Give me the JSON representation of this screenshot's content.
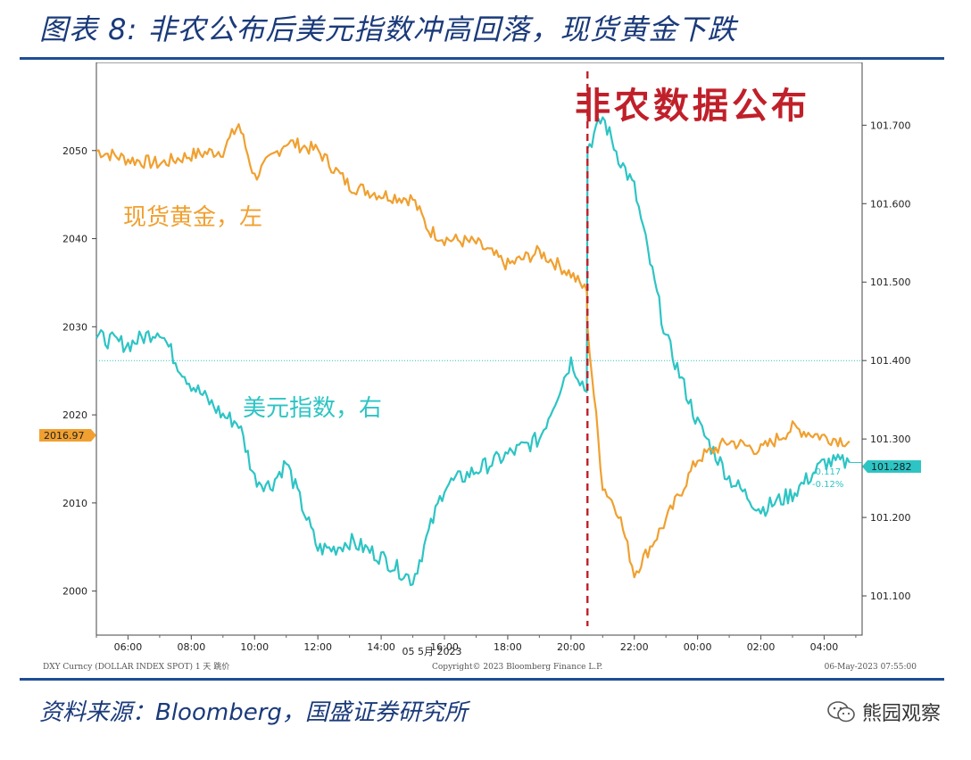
{
  "header": {
    "title": "图表 8:  非农公布后美元指数冲高回落，现货黄金下跌"
  },
  "footer": {
    "source": "资料来源：Bloomberg，国盛证券研究所",
    "watermark": "熊园观察"
  },
  "colors": {
    "gold": "#f0a030",
    "dxy": "#2ec4c4",
    "event": "#c0202a",
    "accent": "#1f4e96"
  },
  "chart_data": {
    "type": "line",
    "annotation_event": "非农数据公布",
    "series_labels": {
      "gold": "现货黄金，左",
      "dxy": "美元指数，右"
    },
    "x_ticks": [
      "06:00",
      "08:00",
      "10:00",
      "12:00",
      "14:00",
      "16:00",
      "18:00",
      "20:00",
      "22:00",
      "00:00",
      "02:00",
      "04:00"
    ],
    "x_date_label": "05 5月 2023",
    "y_left_ticks": [
      "2000",
      "2010",
      "2020",
      "2030",
      "2040",
      "2050"
    ],
    "y_right_ticks": [
      "101.100",
      "101.200",
      "101.300",
      "101.400",
      "101.500",
      "101.600",
      "101.700"
    ],
    "ylim_left": [
      1995,
      2060
    ],
    "ylim_right": [
      101.05,
      101.78
    ],
    "last_gold_label": "2016.97",
    "last_dxy_label": "101.282",
    "dxy_change": "-0.117",
    "dxy_change_pct": "-0.12%",
    "reference_level_right": 101.4,
    "footer_left": "DXY Curncy (DOLLAR INDEX SPOT) 1 天  跳价",
    "footer_mid": "Copyright© 2023 Bloomberg Finance L.P.",
    "footer_right": "06-May-2023 07:55:00",
    "x": [
      5.0,
      6.0,
      7.0,
      7.5,
      8.0,
      9.0,
      9.5,
      10.0,
      10.5,
      11.0,
      12.0,
      12.5,
      13.0,
      14.0,
      15.0,
      15.5,
      16.0,
      17.0,
      18.0,
      19.0,
      20.0,
      20.5,
      20.52,
      21.0,
      21.5,
      22.0,
      23.0,
      24.0,
      25.0,
      26.0,
      27.0,
      28.0,
      28.8
    ],
    "gold": [
      2050,
      2049.0,
      2048.5,
      2049.0,
      2049.5,
      2050.0,
      2053,
      2047,
      2049,
      2051.0,
      2050.0,
      2048,
      2046,
      2045.0,
      2044.5,
      2041,
      2040.0,
      2039.5,
      2037,
      2038.5,
      2036,
      2034.0,
      2030.0,
      2012,
      2009,
      2002,
      2008.0,
      2015.0,
      2017,
      2016.0,
      2018.5,
      2017.5,
      2017.0
    ],
    "dxy": [
      101.43,
      101.42,
      101.44,
      101.4,
      101.37,
      101.33,
      101.32,
      101.25,
      101.24,
      101.27,
      101.16,
      101.16,
      101.17,
      101.15,
      101.12,
      101.18,
      101.24,
      101.26,
      101.28,
      101.3,
      101.4,
      101.36,
      101.67,
      101.71,
      101.66,
      101.62,
      101.43,
      101.32,
      101.25,
      101.21,
      101.23,
      101.27,
      101.27
    ]
  }
}
